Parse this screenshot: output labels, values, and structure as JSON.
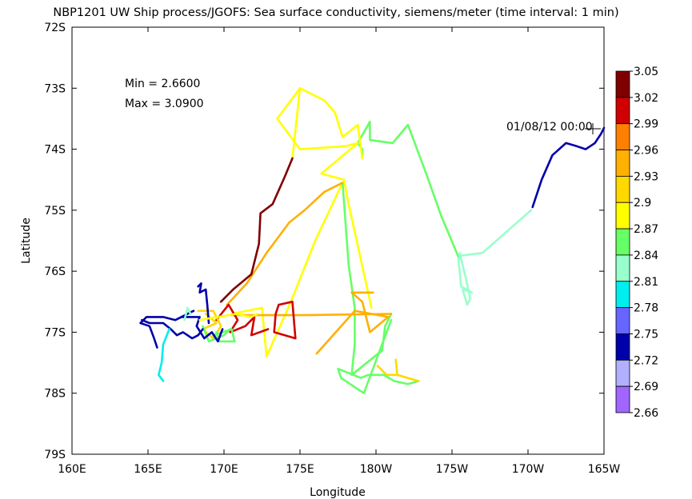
{
  "chart_data": {
    "type": "scatter",
    "title": "NBP1201 UW Ship process/JGOFS: Sea surface conductivity, siemens/meter  (time interval: 1 min)",
    "xlabel": "Longitude",
    "ylabel": "Latitude",
    "x_ticks": [
      "160E",
      "165E",
      "170E",
      "175E",
      "180W",
      "175W",
      "170W",
      "165W"
    ],
    "y_ticks": [
      "72S",
      "73S",
      "74S",
      "75S",
      "76S",
      "77S",
      "78S",
      "79S"
    ],
    "xlim": [
      160,
      195
    ],
    "ylim": [
      -79,
      -72
    ],
    "stats": {
      "min_label": "Min = 2.6600",
      "max_label": "Max = 3.0900"
    },
    "start_label": "01/08/12 00:00",
    "start_point": {
      "lon": 194.8,
      "lat": -73.7
    },
    "colorbar": {
      "labels": [
        "3.05",
        "3.02",
        "2.99",
        "2.96",
        "2.93",
        "2.9",
        "2.87",
        "2.84",
        "2.81",
        "2.78",
        "2.75",
        "2.72",
        "2.69",
        "2.66"
      ],
      "colors": [
        "#800000",
        "#d00000",
        "#ff8000",
        "#ffb000",
        "#ffd800",
        "#ffff00",
        "#66ff66",
        "#99ffcc",
        "#00eeee",
        "#6666ff",
        "#0000aa",
        "#b0b0ff",
        "#a066ff"
      ]
    },
    "track_segments": [
      {
        "value": 2.74,
        "points": [
          [
            195.0,
            -73.65
          ],
          [
            194.8,
            -73.75
          ],
          [
            194.4,
            -73.9
          ],
          [
            193.8,
            -74.0
          ],
          [
            193.2,
            -73.95
          ],
          [
            192.5,
            -73.9
          ],
          [
            191.6,
            -74.1
          ],
          [
            190.9,
            -74.5
          ],
          [
            190.3,
            -74.95
          ]
        ]
      },
      {
        "value": 2.84,
        "points": [
          [
            190.2,
            -75.0
          ],
          [
            188.6,
            -75.35
          ],
          [
            187.0,
            -75.7
          ],
          [
            185.4,
            -75.75
          ],
          [
            185.6,
            -75.8
          ]
        ]
      },
      {
        "value": 2.84,
        "points": [
          [
            185.5,
            -75.7
          ],
          [
            185.9,
            -76.1
          ],
          [
            186.2,
            -76.45
          ],
          [
            186.0,
            -76.55
          ],
          [
            185.7,
            -76.3
          ],
          [
            186.3,
            -76.35
          ],
          [
            185.6,
            -76.25
          ],
          [
            185.4,
            -75.75
          ]
        ]
      },
      {
        "value": 2.86,
        "points": [
          [
            185.4,
            -75.75
          ],
          [
            184.3,
            -75.1
          ],
          [
            183.3,
            -74.4
          ],
          [
            182.1,
            -73.6
          ],
          [
            181.1,
            -73.9
          ],
          [
            179.6,
            -73.85
          ],
          [
            179.6,
            -73.55
          ],
          [
            178.8,
            -73.9
          ],
          [
            179.1,
            -74.0
          ],
          [
            179.1,
            -74.15
          ]
        ]
      },
      {
        "value": 2.87,
        "points": [
          [
            175.0,
            -73.0
          ],
          [
            173.5,
            -73.5
          ],
          [
            175.0,
            -74.0
          ],
          [
            178.0,
            -73.95
          ],
          [
            178.8,
            -73.9
          ],
          [
            176.4,
            -74.4
          ],
          [
            177.9,
            -74.5
          ],
          [
            178.2,
            -74.9
          ],
          [
            179.7,
            -76.6
          ]
        ]
      },
      {
        "value": 2.88,
        "points": [
          [
            174.5,
            -74.15
          ],
          [
            175.0,
            -73.0
          ],
          [
            176.6,
            -73.2
          ],
          [
            177.3,
            -73.4
          ],
          [
            177.8,
            -73.8
          ],
          [
            178.8,
            -73.6
          ],
          [
            179.1,
            -74.15
          ]
        ]
      },
      {
        "value": 2.9,
        "points": [
          [
            177.8,
            -74.55
          ],
          [
            176.0,
            -75.5
          ],
          [
            174.4,
            -76.5
          ],
          [
            172.8,
            -77.4
          ],
          [
            172.5,
            -76.6
          ],
          [
            170.5,
            -76.7
          ]
        ]
      },
      {
        "value": 2.86,
        "points": [
          [
            177.8,
            -74.55
          ],
          [
            178.2,
            -75.9
          ],
          [
            178.6,
            -76.6
          ],
          [
            178.6,
            -77.2
          ],
          [
            178.4,
            -77.7
          ],
          [
            180.4,
            -77.3
          ],
          [
            180.6,
            -76.9
          ],
          [
            181.0,
            -76.7
          ]
        ]
      },
      {
        "value": 2.85,
        "points": [
          [
            181.0,
            -76.8
          ],
          [
            179.2,
            -78.0
          ],
          [
            177.7,
            -77.75
          ],
          [
            177.5,
            -77.6
          ],
          [
            179.0,
            -77.75
          ],
          [
            179.5,
            -77.7
          ],
          [
            180.5,
            -77.7
          ],
          [
            181.2,
            -77.8
          ],
          [
            182.1,
            -77.85
          ],
          [
            182.8,
            -77.8
          ]
        ]
      },
      {
        "value": 2.91,
        "points": [
          [
            180.1,
            -77.55
          ],
          [
            180.7,
            -77.7
          ],
          [
            181.4,
            -77.7
          ],
          [
            181.3,
            -77.45
          ],
          [
            181.4,
            -77.7
          ],
          [
            182.8,
            -77.8
          ]
        ]
      },
      {
        "value": 2.95,
        "points": [
          [
            181.0,
            -76.7
          ],
          [
            175.0,
            -76.72
          ],
          [
            170.5,
            -76.72
          ]
        ]
      },
      {
        "value": 2.94,
        "points": [
          [
            176.1,
            -77.35
          ],
          [
            178.6,
            -76.65
          ],
          [
            180.8,
            -76.75
          ],
          [
            179.6,
            -77.0
          ],
          [
            179.1,
            -76.5
          ],
          [
            178.4,
            -76.35
          ],
          [
            179.8,
            -76.35
          ]
        ]
      },
      {
        "value": 2.95,
        "points": [
          [
            170.2,
            -76.55
          ],
          [
            171.5,
            -76.2
          ],
          [
            172.8,
            -75.7
          ],
          [
            174.3,
            -75.2
          ],
          [
            175.3,
            -75.0
          ],
          [
            176.6,
            -74.7
          ],
          [
            177.8,
            -74.55
          ]
        ]
      },
      {
        "value": 3.06,
        "points": [
          [
            169.8,
            -76.5
          ],
          [
            170.6,
            -76.3
          ],
          [
            171.8,
            -76.05
          ],
          [
            172.3,
            -75.55
          ],
          [
            172.4,
            -75.05
          ],
          [
            173.2,
            -74.9
          ],
          [
            174.0,
            -74.45
          ],
          [
            174.5,
            -74.15
          ]
        ]
      },
      {
        "value": 3.0,
        "points": [
          [
            173.6,
            -76.55
          ],
          [
            174.5,
            -76.5
          ],
          [
            174.6,
            -76.8
          ],
          [
            174.7,
            -77.1
          ],
          [
            173.3,
            -77.0
          ],
          [
            173.4,
            -76.7
          ],
          [
            173.6,
            -76.55
          ]
        ]
      },
      {
        "value": 3.0,
        "points": [
          [
            169.5,
            -76.8
          ],
          [
            170.3,
            -76.55
          ],
          [
            170.9,
            -76.8
          ],
          [
            170.4,
            -77.0
          ],
          [
            171.4,
            -76.9
          ],
          [
            172.0,
            -76.75
          ],
          [
            171.8,
            -77.05
          ],
          [
            172.9,
            -76.95
          ]
        ]
      },
      {
        "value": 2.91,
        "points": [
          [
            168.3,
            -76.65
          ],
          [
            169.3,
            -76.65
          ],
          [
            169.8,
            -76.9
          ],
          [
            169.3,
            -77.1
          ],
          [
            168.6,
            -76.95
          ],
          [
            169.5,
            -76.85
          ],
          [
            168.8,
            -76.7
          ]
        ]
      },
      {
        "value": 2.85,
        "points": [
          [
            168.6,
            -76.9
          ],
          [
            169.0,
            -77.15
          ],
          [
            170.0,
            -77.05
          ],
          [
            170.4,
            -76.95
          ]
        ]
      },
      {
        "value": 2.85,
        "points": [
          [
            169.3,
            -77.05
          ],
          [
            170.5,
            -76.95
          ],
          [
            170.7,
            -77.15
          ],
          [
            169.7,
            -77.15
          ],
          [
            169.5,
            -77.0
          ]
        ]
      },
      {
        "value": 2.75,
        "points": [
          [
            167.2,
            -76.75
          ],
          [
            168.4,
            -76.75
          ],
          [
            168.2,
            -76.9
          ],
          [
            168.7,
            -77.1
          ],
          [
            169.2,
            -77.0
          ],
          [
            169.6,
            -77.15
          ],
          [
            169.9,
            -76.95
          ]
        ]
      },
      {
        "value": 2.74,
        "points": [
          [
            168.0,
            -76.65
          ],
          [
            166.8,
            -76.8
          ],
          [
            166.0,
            -76.75
          ],
          [
            165.5,
            -76.75
          ],
          [
            164.9,
            -76.75
          ],
          [
            164.5,
            -76.85
          ],
          [
            165.1,
            -76.9
          ],
          [
            165.4,
            -77.1
          ],
          [
            165.6,
            -77.25
          ]
        ]
      },
      {
        "value": 2.75,
        "points": [
          [
            164.6,
            -76.8
          ],
          [
            165.1,
            -76.85
          ],
          [
            166.0,
            -76.85
          ],
          [
            166.5,
            -76.95
          ],
          [
            166.9,
            -77.05
          ],
          [
            167.3,
            -77.0
          ],
          [
            167.6,
            -77.05
          ],
          [
            167.9,
            -77.1
          ],
          [
            168.3,
            -77.05
          ],
          [
            168.6,
            -76.95
          ]
        ]
      },
      {
        "value": 2.8,
        "points": [
          [
            166.4,
            -76.95
          ],
          [
            166.0,
            -77.2
          ],
          [
            165.9,
            -77.5
          ],
          [
            165.7,
            -77.7
          ],
          [
            166.0,
            -77.8
          ]
        ]
      },
      {
        "value": 2.74,
        "points": [
          [
            168.3,
            -76.25
          ],
          [
            168.5,
            -76.2
          ],
          [
            168.4,
            -76.35
          ],
          [
            168.8,
            -76.3
          ],
          [
            168.9,
            -76.55
          ],
          [
            169.0,
            -76.85
          ]
        ]
      },
      {
        "value": 2.82,
        "points": [
          [
            167.4,
            -76.8
          ],
          [
            167.6,
            -76.6
          ],
          [
            167.8,
            -76.7
          ]
        ]
      },
      {
        "value": 2.9,
        "points": [
          [
            168.4,
            -76.8
          ],
          [
            170.8,
            -76.7
          ],
          [
            171.8,
            -76.75
          ],
          [
            172.2,
            -76.7
          ]
        ]
      }
    ]
  }
}
